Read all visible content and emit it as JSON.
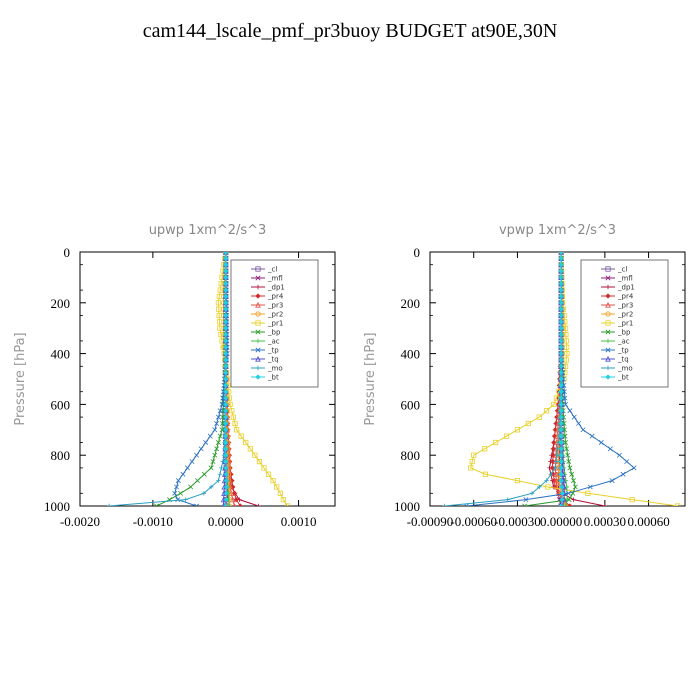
{
  "title": "cam144_lscale_pmf_pr3buoy  BUDGET at90E,30N",
  "colors": {
    "cl": "#7a5aa0",
    "mfl": "#8b1a7a",
    "dp1": "#b0103a",
    "pr4": "#d22a2a",
    "pr3": "#e8504a",
    "pr2": "#f0a020",
    "pr1": "#e8d02a",
    "bp": "#2a9a2a",
    "ac": "#40c040",
    "tp": "#2a70c0",
    "tq": "#5050d0",
    "mo": "#2aa0c0",
    "bt": "#20d0e0"
  },
  "chart_data": [
    {
      "type": "line",
      "title": "upwp   1xm^2/s^3",
      "xlabel": "",
      "ylabel": "Pressure [hPa]",
      "xlim": [
        -0.002,
        0.0015
      ],
      "ylim": [
        1000,
        0
      ],
      "x_ticks": [
        -0.002,
        -0.001,
        0.0,
        0.001
      ],
      "x_tick_labels": [
        "-0.0020",
        "-0.0010",
        "0.0000",
        "0.0010"
      ],
      "y_ticks": [
        0,
        200,
        400,
        600,
        800,
        1000
      ],
      "y_tick_labels": [
        "0",
        "200",
        "400",
        "600",
        "800",
        "1000"
      ],
      "legend_position": "top-right",
      "series": [
        {
          "name": "_cl",
          "color_key": "cl",
          "pressure": [
            0,
            300,
            600,
            800,
            900,
            960,
            1000
          ],
          "values": [
            0,
            0,
            0,
            0,
            1e-05,
            2e-05,
            0
          ]
        },
        {
          "name": "_mfl",
          "color_key": "mfl",
          "pressure": [
            0,
            300,
            600,
            800,
            900,
            960,
            1000
          ],
          "values": [
            0,
            0,
            0,
            1e-05,
            2e-05,
            3e-05,
            0
          ]
        },
        {
          "name": "_dp1",
          "color_key": "dp1",
          "pressure": [
            0,
            400,
            700,
            850,
            930,
            980,
            1000
          ],
          "values": [
            0,
            0,
            2e-05,
            4e-05,
            8e-05,
            0.0002,
            0.00045
          ]
        },
        {
          "name": "_pr4",
          "color_key": "pr4",
          "pressure": [
            0,
            400,
            700,
            850,
            930,
            980,
            1000
          ],
          "values": [
            0,
            0,
            3e-05,
            6e-05,
            0.0001,
            0.00015,
            0.0002
          ]
        },
        {
          "name": "_pr3",
          "color_key": "pr3",
          "pressure": [
            0,
            400,
            700,
            850,
            930,
            980,
            1000
          ],
          "values": [
            0,
            0,
            2e-05,
            4e-05,
            6e-05,
            0.0001,
            0.00012
          ]
        },
        {
          "name": "_pr2",
          "color_key": "pr2",
          "pressure": [
            0,
            200,
            400,
            600,
            800,
            900,
            960,
            1000
          ],
          "values": [
            0,
            -3e-05,
            -2e-05,
            1e-05,
            3e-05,
            4e-05,
            5e-05,
            5e-05
          ]
        },
        {
          "name": "_pr1",
          "color_key": "pr1",
          "pressure": [
            0,
            100,
            200,
            300,
            400,
            500,
            600,
            700,
            800,
            900,
            950,
            980,
            1000
          ],
          "values": [
            0,
            -5e-05,
            -0.0001,
            -8e-05,
            -2e-05,
            2e-05,
            6e-05,
            0.00015,
            0.0004,
            0.00065,
            0.00075,
            0.0008,
            0.00085
          ]
        },
        {
          "name": "_bp",
          "color_key": "bp",
          "pressure": [
            0,
            400,
            700,
            850,
            930,
            980,
            1000
          ],
          "values": [
            0,
            0,
            -5e-05,
            -0.0002,
            -0.0005,
            -0.0008,
            -0.00095
          ]
        },
        {
          "name": "_ac",
          "color_key": "ac",
          "pressure": [
            0,
            400,
            700,
            850,
            930,
            980,
            1000
          ],
          "values": [
            0,
            0,
            0,
            1e-05,
            3e-05,
            4e-05,
            5e-05
          ]
        },
        {
          "name": "_tp",
          "color_key": "tp",
          "pressure": [
            0,
            200,
            400,
            600,
            700,
            800,
            900,
            950,
            980,
            1000
          ],
          "values": [
            0,
            1e-05,
            2e-05,
            -5e-05,
            -0.00015,
            -0.0004,
            -0.00065,
            -0.0007,
            -0.00065,
            -0.0004
          ]
        },
        {
          "name": "_tq",
          "color_key": "tq",
          "pressure": [
            0,
            400,
            700,
            850,
            930,
            980,
            1000
          ],
          "values": [
            0,
            0,
            0,
            -1e-05,
            -2e-05,
            -3e-05,
            -3e-05
          ]
        },
        {
          "name": "_mo",
          "color_key": "mo",
          "pressure": [
            0,
            300,
            600,
            800,
            900,
            950,
            980,
            1000
          ],
          "values": [
            0,
            0,
            0,
            -2e-05,
            -0.0001,
            -0.0003,
            -0.0006,
            -0.0016
          ]
        },
        {
          "name": "_bt",
          "color_key": "bt",
          "pressure": [
            0,
            300,
            600,
            800,
            900,
            960,
            1000
          ],
          "values": [
            0,
            0,
            0,
            0,
            1e-05,
            1e-05,
            0
          ]
        }
      ]
    },
    {
      "type": "line",
      "title": "vpwp   1xm^2/s^3",
      "xlabel": "",
      "ylabel": "Pressure [hPa]",
      "xlim": [
        -0.0009,
        0.00085
      ],
      "ylim": [
        1000,
        0
      ],
      "x_ticks": [
        -0.0009,
        -0.0006,
        -0.0003,
        0.0,
        0.0003,
        0.0006
      ],
      "x_tick_labels": [
        "-0.00090",
        "-0.00060",
        "-0.00030",
        "0.00000",
        "0.00030",
        "0.00060"
      ],
      "y_ticks": [
        0,
        200,
        400,
        600,
        800,
        1000
      ],
      "y_tick_labels": [
        "0",
        "200",
        "400",
        "600",
        "800",
        "1000"
      ],
      "legend_position": "top-right",
      "series": [
        {
          "name": "_cl",
          "color_key": "cl",
          "pressure": [
            0,
            300,
            600,
            800,
            900,
            960,
            1000
          ],
          "values": [
            0,
            0,
            0,
            0,
            1e-05,
            1e-05,
            0
          ]
        },
        {
          "name": "_mfl",
          "color_key": "mfl",
          "pressure": [
            0,
            300,
            600,
            800,
            900,
            960,
            1000
          ],
          "values": [
            0,
            0,
            0,
            -1e-05,
            -2e-05,
            -2e-05,
            0
          ]
        },
        {
          "name": "_dp1",
          "color_key": "dp1",
          "pressure": [
            0,
            400,
            600,
            750,
            850,
            930,
            980,
            1000
          ],
          "values": [
            0,
            0,
            -2e-05,
            -5e-05,
            -8e-05,
            -5e-05,
            0.0001,
            0.0003
          ]
        },
        {
          "name": "_pr4",
          "color_key": "pr4",
          "pressure": [
            0,
            400,
            600,
            750,
            850,
            930,
            980,
            1000
          ],
          "values": [
            0,
            0,
            -2e-05,
            -5e-05,
            -6e-05,
            -4e-05,
            2e-05,
            6e-05
          ]
        },
        {
          "name": "_pr3",
          "color_key": "pr3",
          "pressure": [
            0,
            400,
            600,
            750,
            850,
            930,
            980,
            1000
          ],
          "values": [
            0,
            0,
            -1e-05,
            -3e-05,
            -4e-05,
            -3e-05,
            1e-05,
            4e-05
          ]
        },
        {
          "name": "_pr2",
          "color_key": "pr2",
          "pressure": [
            0,
            300,
            600,
            800,
            930,
            980,
            1000
          ],
          "values": [
            0,
            1e-05,
            0,
            -2e-05,
            -1e-05,
            2e-05,
            3e-05
          ]
        },
        {
          "name": "_pr1",
          "color_key": "pr1",
          "pressure": [
            0,
            200,
            300,
            400,
            500,
            600,
            650,
            700,
            750,
            800,
            850,
            880,
            900,
            930,
            960,
            980,
            1000
          ],
          "values": [
            0,
            1e-05,
            3e-05,
            4e-05,
            2e-05,
            -5e-05,
            -0.00015,
            -0.0003,
            -0.00045,
            -0.0006,
            -0.00062,
            -0.0005,
            -0.0003,
            -5e-05,
            0.0003,
            0.00055,
            0.0008
          ]
        },
        {
          "name": "_bp",
          "color_key": "bp",
          "pressure": [
            0,
            400,
            600,
            750,
            850,
            930,
            980,
            1000
          ],
          "values": [
            0,
            0,
            1e-05,
            3e-05,
            6e-05,
            0.0001,
            5e-05,
            -0.00025
          ]
        },
        {
          "name": "_ac",
          "color_key": "ac",
          "pressure": [
            0,
            400,
            700,
            850,
            930,
            980,
            1000
          ],
          "values": [
            0,
            0,
            0,
            2e-05,
            4e-05,
            4e-05,
            3e-05
          ]
        },
        {
          "name": "_tp",
          "color_key": "tp",
          "pressure": [
            0,
            400,
            600,
            700,
            800,
            850,
            900,
            950,
            980,
            1000
          ],
          "values": [
            0,
            0,
            3e-05,
            0.00015,
            0.0004,
            0.0005,
            0.00035,
            5e-05,
            -0.0003,
            -0.00065
          ]
        },
        {
          "name": "_tq",
          "color_key": "tq",
          "pressure": [
            0,
            400,
            700,
            850,
            930,
            980,
            1000
          ],
          "values": [
            0,
            0,
            0,
            1e-05,
            2e-05,
            2e-05,
            1e-05
          ]
        },
        {
          "name": "_mo",
          "color_key": "mo",
          "pressure": [
            0,
            400,
            700,
            850,
            900,
            950,
            980,
            1000
          ],
          "values": [
            0,
            0,
            -1e-05,
            -4e-05,
            -0.0001,
            -0.0002,
            -0.0004,
            -0.0008
          ]
        },
        {
          "name": "_bt",
          "color_key": "bt",
          "pressure": [
            0,
            300,
            600,
            800,
            900,
            960,
            1000
          ],
          "values": [
            0,
            0,
            0,
            0,
            0,
            1e-05,
            0
          ]
        }
      ]
    }
  ]
}
